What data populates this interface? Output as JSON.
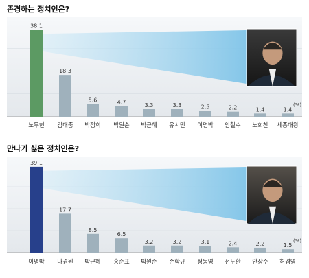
{
  "chart_data": [
    {
      "type": "bar",
      "title": "존경하는 정치인은?",
      "unit": "(%)",
      "categories": [
        "노무현",
        "김대중",
        "박정희",
        "박원순",
        "박근혜",
        "유시민",
        "이명박",
        "안철수",
        "노회찬",
        "세종대왕"
      ],
      "values": [
        38.1,
        18.3,
        5.6,
        4.7,
        3.3,
        3.3,
        2.5,
        2.2,
        1.4,
        1.4
      ],
      "value_labels": [
        "38.1",
        "18.3",
        "5.6",
        "4.7",
        "3.3",
        "3.3",
        "2.5",
        "2.2",
        "1.4",
        "1.4"
      ],
      "highlight_color": "#5c9a63",
      "bar_color": "#9fb1bc",
      "ylim": [
        0,
        40
      ]
    },
    {
      "type": "bar",
      "title": "만나기 싫은 정치인은?",
      "unit": "(%)",
      "categories": [
        "이명박",
        "나경원",
        "박근혜",
        "홍준표",
        "박원순",
        "손학규",
        "정동영",
        "전두환",
        "안상수",
        "허경영"
      ],
      "values": [
        39.1,
        17.7,
        8.5,
        6.5,
        3.2,
        3.2,
        3.1,
        2.4,
        2.2,
        1.5
      ],
      "value_labels": [
        "39.1",
        "17.7",
        "8.5",
        "6.5",
        "3.2",
        "3.2",
        "3.1",
        "2.4",
        "2.2",
        "1.5"
      ],
      "highlight_color": "#27408b",
      "bar_color": "#9fb1bc",
      "ylim": [
        0,
        40
      ]
    }
  ]
}
